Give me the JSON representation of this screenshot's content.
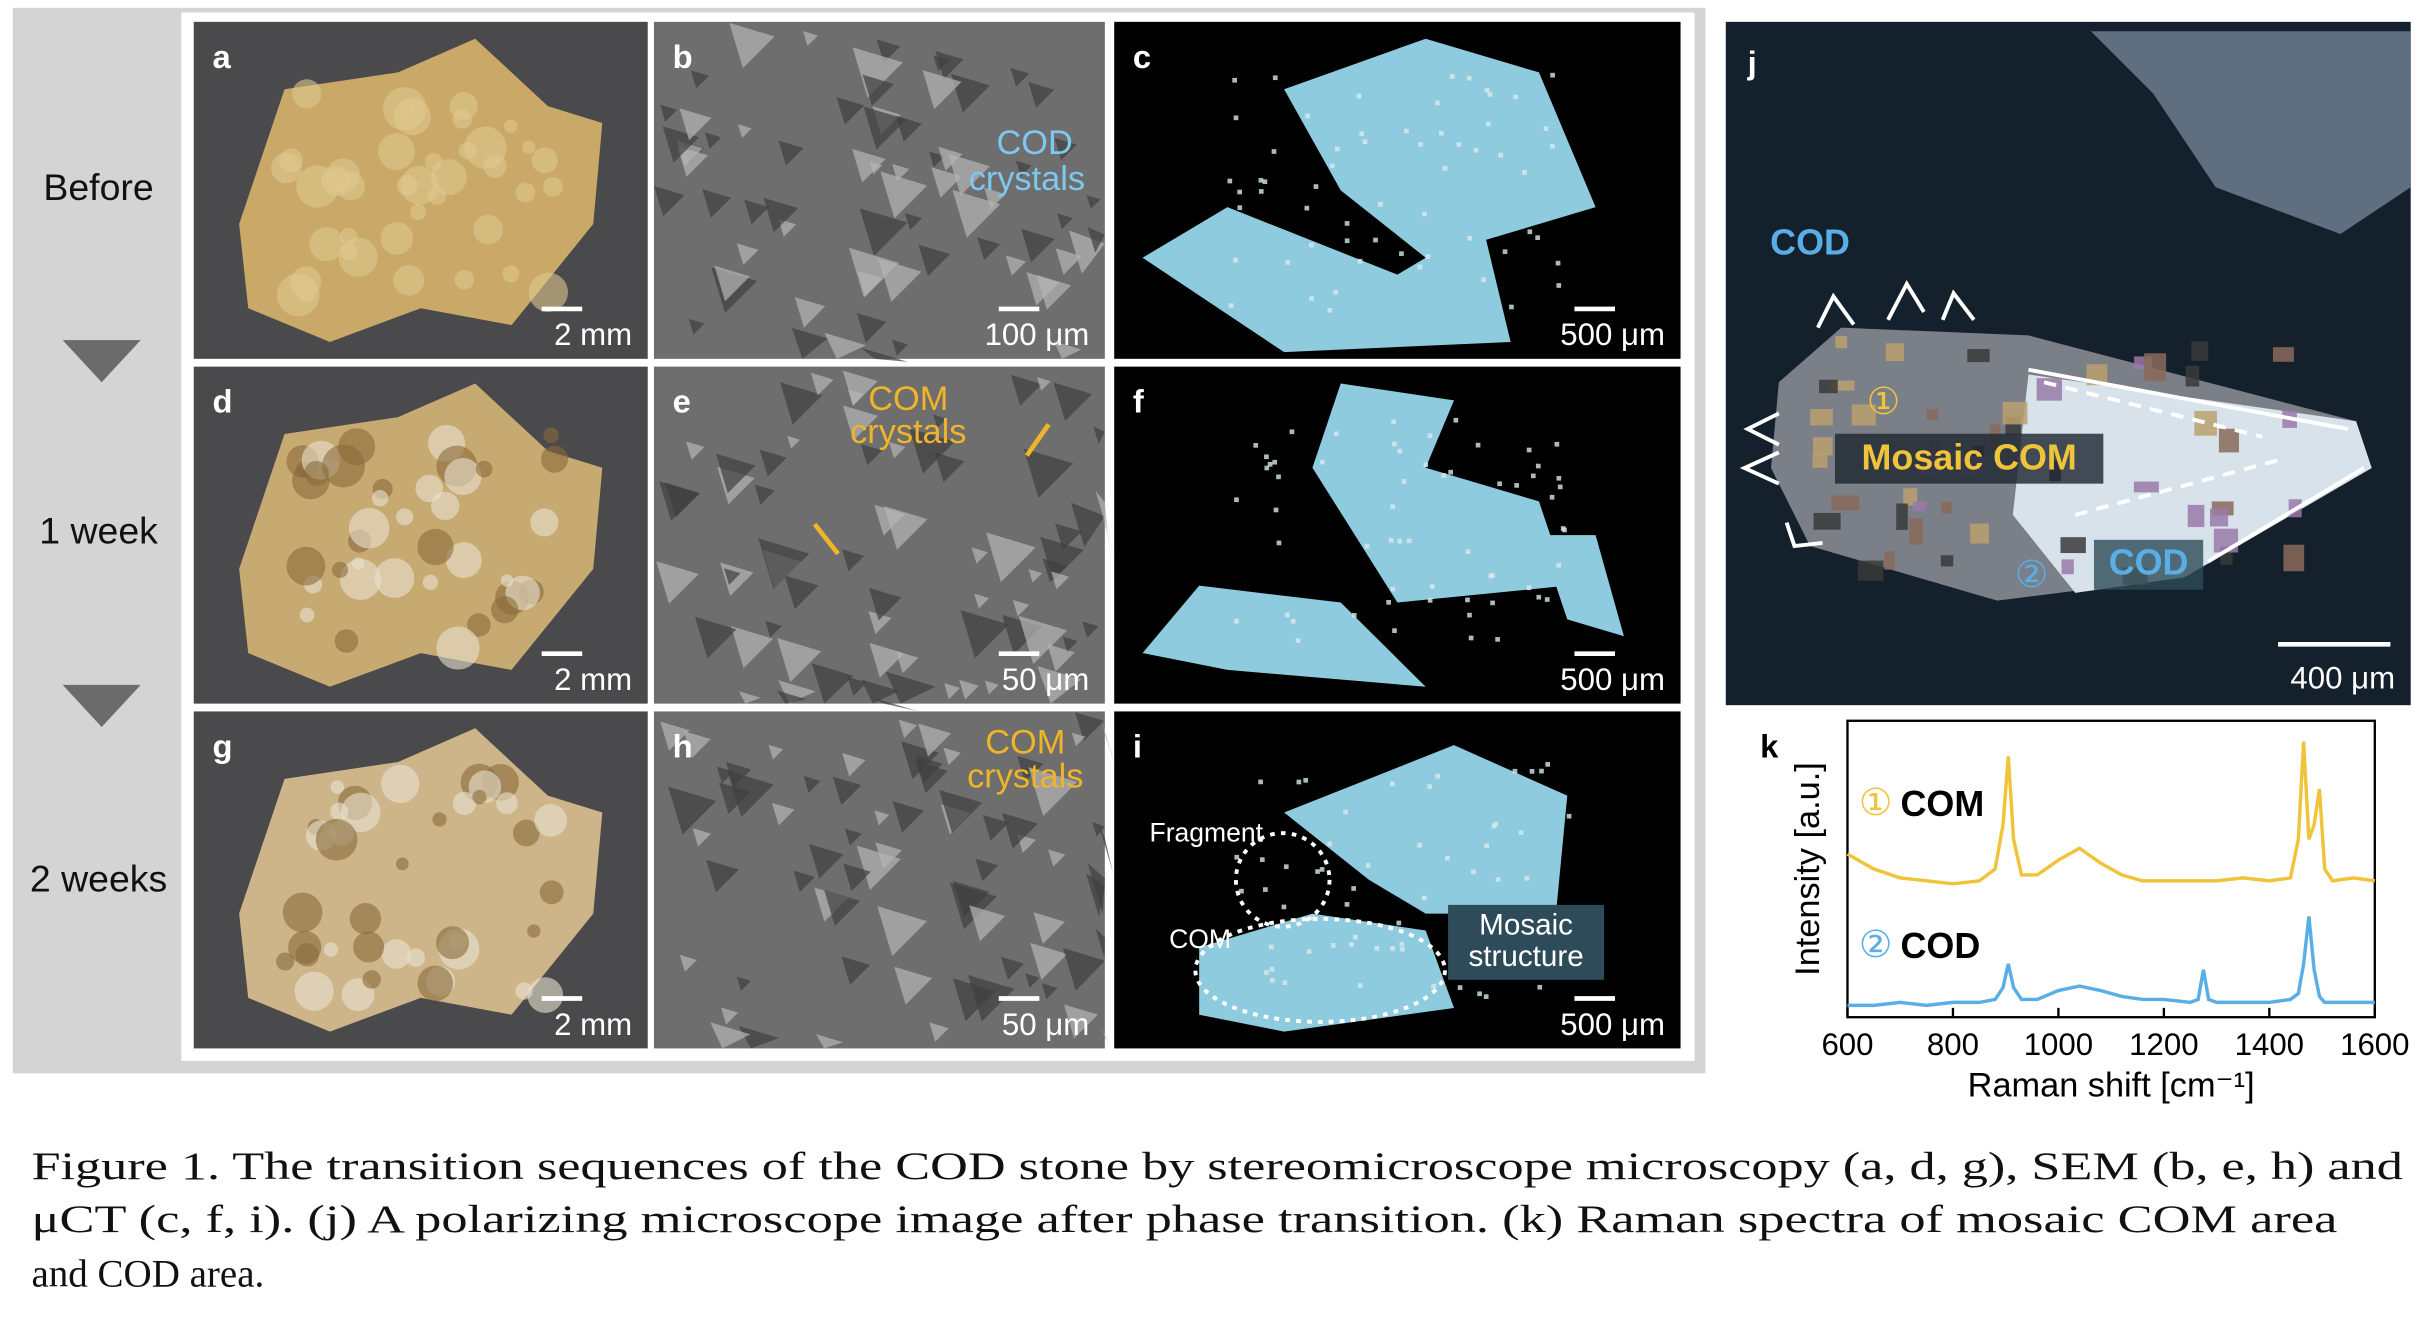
{
  "row_labels": [
    "Before",
    "1 week",
    "2 weeks"
  ],
  "panels": [
    {
      "label": "a",
      "scale": "2 mm"
    },
    {
      "label": "b",
      "scale": "100 μm",
      "notes": [
        "COD",
        "crystals"
      ]
    },
    {
      "label": "c",
      "scale": "500 μm"
    },
    {
      "label": "d",
      "scale": "2 mm"
    },
    {
      "label": "e",
      "scale": "50 μm",
      "notes": [
        "COM",
        "crystals"
      ]
    },
    {
      "label": "f",
      "scale": "500 μm"
    },
    {
      "label": "g",
      "scale": "2 mm"
    },
    {
      "label": "h",
      "scale": "50 μm",
      "notes": [
        "COM",
        "crystals"
      ]
    },
    {
      "label": "i",
      "scale": "500 μm",
      "notes": [
        "Fragment",
        "COM",
        "Mosaic",
        "structure"
      ]
    }
  ],
  "panel_j": {
    "label": "j",
    "scale": "400 μm",
    "notes": [
      "COD",
      "①",
      "Mosaic COM",
      "②",
      "COD"
    ]
  },
  "chart_data": {
    "type": "line",
    "label": "k",
    "x_label": "Raman shift [cm⁻¹]",
    "y_label": "Intensity [a.u.]",
    "xlim": [
      600,
      1600
    ],
    "xticks": [
      600,
      800,
      1000,
      1200,
      1400,
      1600
    ],
    "ylim": [
      0,
      10
    ],
    "x": [
      600,
      650,
      700,
      750,
      800,
      850,
      880,
      895,
      905,
      915,
      930,
      960,
      1000,
      1040,
      1080,
      1120,
      1160,
      1200,
      1250,
      1265,
      1275,
      1285,
      1300,
      1350,
      1400,
      1440,
      1455,
      1465,
      1475,
      1485,
      1495,
      1505,
      1520,
      1560,
      1600
    ],
    "series": [
      {
        "name": "COM",
        "marker": "①",
        "color": "#f0c43a",
        "values": [
          5.5,
          5.0,
          4.7,
          4.6,
          4.5,
          4.6,
          5.0,
          6.5,
          8.8,
          6.0,
          4.8,
          4.8,
          5.3,
          5.7,
          5.2,
          4.8,
          4.6,
          4.6,
          4.6,
          4.6,
          4.6,
          4.6,
          4.6,
          4.7,
          4.6,
          4.7,
          6.0,
          9.3,
          6.0,
          6.5,
          7.7,
          5.0,
          4.6,
          4.7,
          4.6
        ]
      },
      {
        "name": "COD",
        "marker": "②",
        "color": "#5aaee6",
        "values": [
          0.4,
          0.4,
          0.5,
          0.4,
          0.5,
          0.5,
          0.6,
          1.0,
          1.8,
          1.0,
          0.6,
          0.6,
          0.9,
          1.05,
          0.9,
          0.7,
          0.6,
          0.6,
          0.5,
          0.6,
          1.6,
          0.6,
          0.5,
          0.5,
          0.5,
          0.6,
          0.8,
          1.8,
          3.4,
          1.6,
          0.7,
          0.5,
          0.5,
          0.5,
          0.5
        ]
      }
    ]
  },
  "caption": [
    "Figure 1. The transition sequences of the COD stone by stereomicroscope microscopy (a, d, g), SEM (b, e, h) and",
    "μCT (c, f, i). (j) A polarizing microscope image after phase transition. (k) Raman spectra of mosaic COM area",
    "and COD area."
  ]
}
